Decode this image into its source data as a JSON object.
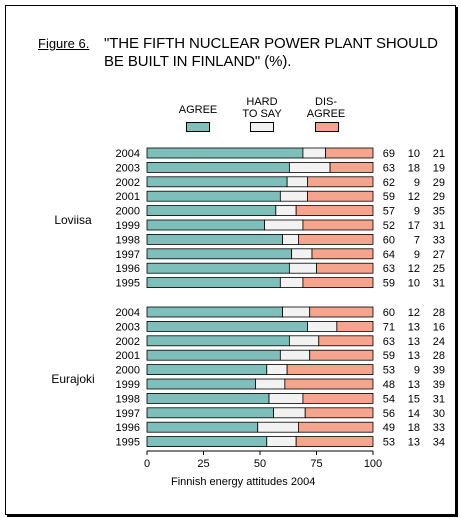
{
  "figure_label": "Figure 6.",
  "chart_data": {
    "type": "bar",
    "stacked": true,
    "orientation": "horizontal",
    "title": "\"THE FIFTH NUCLEAR POWER PLANT SHOULD\nBE BUILT IN FINLAND\" (%).",
    "xlabel": "Finnish energy attitudes 2004",
    "ylabel": "",
    "xlim": [
      0,
      100
    ],
    "xticks": [
      "0",
      "25",
      "50",
      "75",
      "100"
    ],
    "grid": false,
    "legend_position": "top",
    "legend": [
      {
        "label": "AGREE",
        "color": "#7fbfbb"
      },
      {
        "label": "HARD\nTO SAY",
        "color": "#f2f2f2"
      },
      {
        "label": "DIS-\nAGREE",
        "color": "#f5a48e"
      }
    ],
    "groups": [
      {
        "name": "Loviisa",
        "rows": [
          {
            "year": "2004",
            "values": [
              69,
              10,
              21
            ]
          },
          {
            "year": "2003",
            "values": [
              63,
              18,
              19
            ]
          },
          {
            "year": "2002",
            "values": [
              62,
              9,
              29
            ]
          },
          {
            "year": "2001",
            "values": [
              59,
              12,
              29
            ]
          },
          {
            "year": "2000",
            "values": [
              57,
              9,
              35
            ]
          },
          {
            "year": "1999",
            "values": [
              52,
              17,
              31
            ]
          },
          {
            "year": "1998",
            "values": [
              60,
              7,
              33
            ]
          },
          {
            "year": "1997",
            "values": [
              64,
              9,
              27
            ]
          },
          {
            "year": "1996",
            "values": [
              63,
              12,
              25
            ]
          },
          {
            "year": "1995",
            "values": [
              59,
              10,
              31
            ]
          }
        ]
      },
      {
        "name": "Eurajoki",
        "rows": [
          {
            "year": "2004",
            "values": [
              60,
              12,
              28
            ]
          },
          {
            "year": "2003",
            "values": [
              71,
              13,
              16
            ]
          },
          {
            "year": "2002",
            "values": [
              63,
              13,
              24
            ]
          },
          {
            "year": "2001",
            "values": [
              59,
              13,
              28
            ]
          },
          {
            "year": "2000",
            "values": [
              53,
              9,
              39
            ]
          },
          {
            "year": "1999",
            "values": [
              48,
              13,
              39
            ]
          },
          {
            "year": "1998",
            "values": [
              54,
              15,
              31
            ]
          },
          {
            "year": "1997",
            "values": [
              56,
              14,
              30
            ]
          },
          {
            "year": "1996",
            "values": [
              49,
              18,
              33
            ]
          },
          {
            "year": "1995",
            "values": [
              53,
              13,
              34
            ]
          }
        ]
      }
    ]
  }
}
